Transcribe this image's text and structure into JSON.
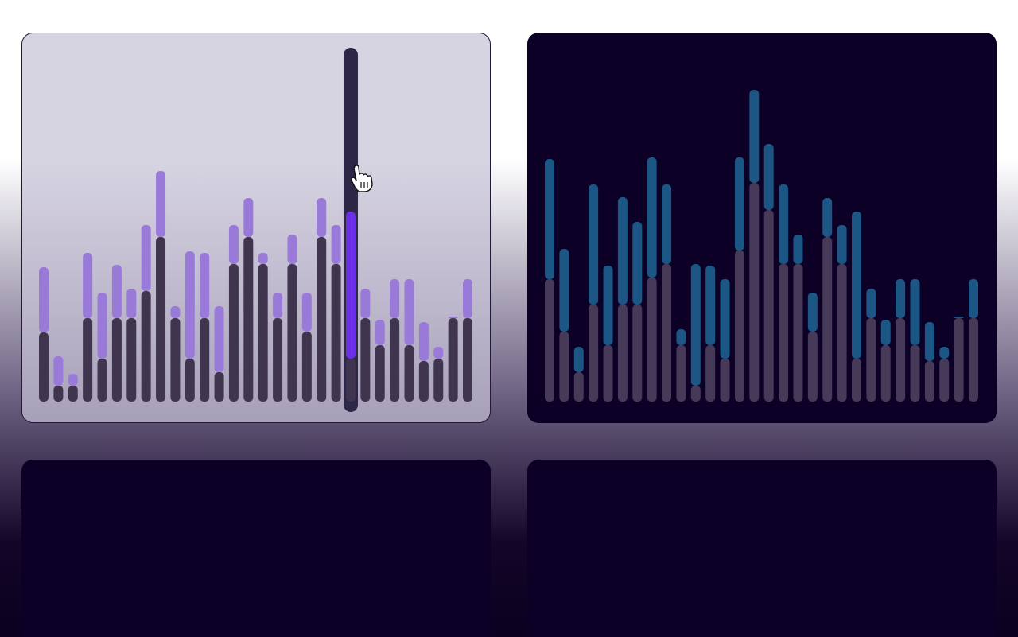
{
  "chart_data": [
    {
      "type": "bar",
      "stacked": true,
      "ylim": [
        0,
        445
      ],
      "highlight": {
        "index": 21,
        "color": "#6b2fe6",
        "track_color": "#2e2646"
      },
      "series": [
        {
          "color": "#3f354f",
          "values": [
            87,
            20,
            20,
            105,
            54,
            105,
            105,
            139,
            207,
            105,
            54,
            105,
            37,
            173,
            207,
            173,
            105,
            173,
            88,
            207,
            173,
            54,
            105,
            71,
            105,
            71,
            51,
            54,
            105,
            105
          ]
        },
        {
          "color": "#9a7ad8",
          "values": [
            82,
            37,
            15,
            82,
            83,
            67,
            37,
            83,
            83,
            15,
            135,
            82,
            83,
            49,
            49,
            14,
            32,
            37,
            49,
            49,
            49,
            185,
            37,
            32,
            49,
            83,
            49,
            15,
            2,
            49
          ]
        }
      ]
    },
    {
      "type": "bar",
      "stacked": true,
      "ylim": [
        0,
        445
      ],
      "series": [
        {
          "color": "#463a58",
          "values": [
            154,
            88,
            37,
            122,
            71,
            122,
            122,
            156,
            173,
            71,
            20,
            71,
            54,
            190,
            275,
            241,
            173,
            173,
            88,
            207,
            173,
            54,
            105,
            71,
            105,
            71,
            51,
            54,
            105,
            105
          ]
        },
        {
          "color": "#1b5685",
          "values": [
            151,
            104,
            32,
            151,
            100,
            135,
            104,
            151,
            100,
            20,
            153,
            100,
            100,
            117,
            117,
            83,
            100,
            37,
            49,
            49,
            49,
            185,
            37,
            32,
            49,
            83,
            49,
            15,
            2,
            49
          ]
        }
      ]
    }
  ]
}
